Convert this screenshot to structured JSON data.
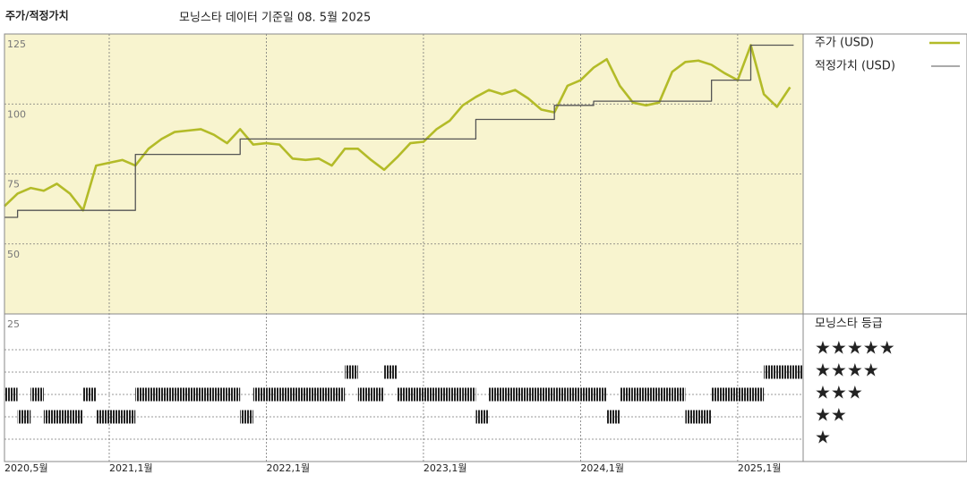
{
  "chart_data": [
    {
      "type": "line",
      "title": "주가/적정가치",
      "subtitle": "모닝스타 데이터 기준일 08. 5월 2025",
      "x": [
        "2020-05",
        "2020-06",
        "2020-07",
        "2020-08",
        "2020-09",
        "2020-10",
        "2020-11",
        "2020-12",
        "2021-01",
        "2021-02",
        "2021-03",
        "2021-04",
        "2021-05",
        "2021-06",
        "2021-07",
        "2021-08",
        "2021-09",
        "2021-10",
        "2021-11",
        "2021-12",
        "2022-01",
        "2022-02",
        "2022-03",
        "2022-04",
        "2022-05",
        "2022-06",
        "2022-07",
        "2022-08",
        "2022-09",
        "2022-10",
        "2022-11",
        "2022-12",
        "2023-01",
        "2023-02",
        "2023-03",
        "2023-04",
        "2023-05",
        "2023-06",
        "2023-07",
        "2023-08",
        "2023-09",
        "2023-10",
        "2023-11",
        "2023-12",
        "2024-01",
        "2024-02",
        "2024-03",
        "2024-04",
        "2024-05",
        "2024-06",
        "2024-07",
        "2024-08",
        "2024-09",
        "2024-10",
        "2024-11",
        "2024-12",
        "2025-01",
        "2025-02",
        "2025-03",
        "2025-04",
        "2025-05"
      ],
      "xlim": [
        "2020-05",
        "2025-06"
      ],
      "xticks": [
        {
          "value": "2020-05",
          "label": "2020,5월"
        },
        {
          "value": "2021-01",
          "label": "2021,1월"
        },
        {
          "value": "2022-01",
          "label": "2022,1월"
        },
        {
          "value": "2023-01",
          "label": "2023,1월"
        },
        {
          "value": "2024-01",
          "label": "2024,1월"
        },
        {
          "value": "2025-01",
          "label": "2025,1월"
        }
      ],
      "ylim": [
        25,
        125
      ],
      "yticks": [
        25,
        50,
        75,
        100,
        125
      ],
      "grid": true,
      "series": [
        {
          "name": "주가 (USD)",
          "color": "#b3bb28",
          "step": false,
          "values": [
            63.5,
            68,
            70,
            69,
            71.5,
            68,
            62,
            78,
            79,
            80,
            78,
            84,
            87.5,
            90,
            90.5,
            91,
            89,
            86,
            91,
            85.5,
            86,
            85.5,
            80.5,
            80,
            80.5,
            78,
            84,
            84,
            80,
            76.5,
            81,
            86,
            86.5,
            91,
            94,
            99.5,
            102.5,
            105,
            103.5,
            105,
            102,
            98,
            97,
            106.5,
            108.5,
            113,
            116,
            106.5,
            100.5,
            99.5,
            100.5,
            111.5,
            115,
            115.5,
            114,
            111,
            108.5,
            121,
            103.5,
            99,
            106
          ]
        },
        {
          "name": "적정가치 (USD)",
          "color": "#555555",
          "step": true,
          "values": [
            59.5,
            62,
            62,
            62,
            62,
            62,
            62,
            62,
            62,
            62,
            82,
            82,
            82,
            82,
            82,
            82,
            82,
            82,
            87.5,
            87.5,
            87.5,
            87.5,
            87.5,
            87.5,
            87.5,
            87.5,
            87.5,
            87.5,
            87.5,
            87.5,
            87.5,
            87.5,
            87.5,
            87.5,
            87.5,
            87.5,
            94.5,
            94.5,
            94.5,
            94.5,
            94.5,
            94.5,
            99.5,
            99.5,
            99.5,
            101,
            101,
            101,
            101,
            101,
            101,
            101,
            101,
            101,
            108.5,
            108.5,
            108.5,
            121,
            121,
            121,
            121
          ]
        }
      ]
    },
    {
      "type": "rating",
      "title": "모닝스타 등급",
      "ylim": [
        0,
        6.6
      ],
      "yticks": [
        {
          "value": 5,
          "label": "★★★★★"
        },
        {
          "value": 4,
          "label": "★★★★"
        },
        {
          "value": 3,
          "label": "★★★"
        },
        {
          "value": 2,
          "label": "★★"
        },
        {
          "value": 1,
          "label": "★"
        }
      ],
      "color": "#222222",
      "values": [
        3,
        2,
        3,
        2,
        2,
        2,
        3,
        2,
        2,
        2,
        3,
        3,
        3,
        3,
        3,
        3,
        3,
        3,
        2,
        3,
        3,
        3,
        3,
        3,
        3,
        3,
        4,
        3,
        3,
        4,
        3,
        3,
        3,
        3,
        3,
        3,
        2,
        3,
        3,
        3,
        3,
        3,
        3,
        3,
        3,
        3,
        2,
        3,
        3,
        3,
        3,
        3,
        2,
        2,
        3,
        3,
        3,
        3,
        4,
        4,
        4
      ]
    }
  ]
}
